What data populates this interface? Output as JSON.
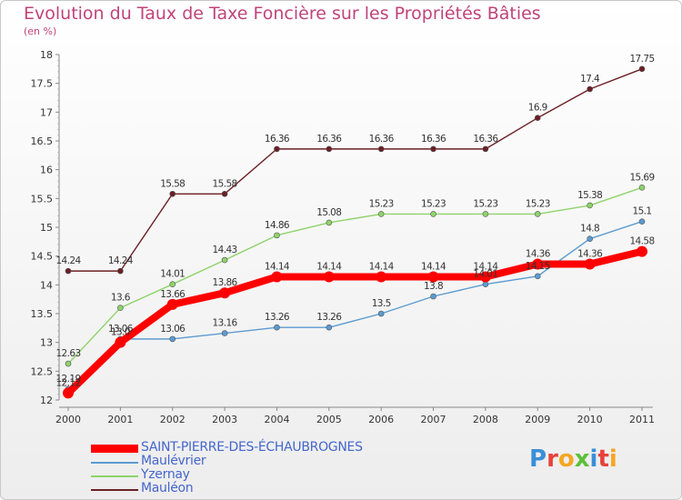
{
  "title": "Evolution du Taux de Taxe Foncière sur les Propriétés Bâties",
  "subtitle": "(en %)",
  "colors": {
    "title": "#c0437a",
    "legend_text": "#4466cc",
    "axis": "#888888"
  },
  "logo": {
    "text": "Proxiti",
    "letters": [
      {
        "ch": "P",
        "color": "#3a8fd8"
      },
      {
        "ch": "r",
        "color": "#e8413a"
      },
      {
        "ch": "o",
        "color": "#f5a623"
      },
      {
        "ch": "x",
        "color": "#5cbf3a"
      },
      {
        "ch": "i",
        "color": "#3a8fd8"
      },
      {
        "ch": "t",
        "color": "#e8413a"
      },
      {
        "ch": "i",
        "color": "#f5a623"
      }
    ]
  },
  "chart_data": {
    "type": "line",
    "x": [
      "2000",
      "2001",
      "2002",
      "2003",
      "2004",
      "2005",
      "2006",
      "2007",
      "2008",
      "2009",
      "2010",
      "2011"
    ],
    "ylim": [
      12,
      18
    ],
    "yticks": [
      "12",
      "12.5",
      "13",
      "13.5",
      "14",
      "14.5",
      "15",
      "15.5",
      "16",
      "16.5",
      "17",
      "17.5",
      "18"
    ],
    "xlabel": "",
    "ylabel": "",
    "grid": false,
    "legend_position": "bottom-left",
    "series": [
      {
        "name": "Mauléon",
        "color": "#6b1f24",
        "values": [
          14.24,
          14.24,
          15.58,
          15.58,
          16.36,
          16.36,
          16.36,
          16.36,
          16.36,
          16.9,
          17.4,
          17.75
        ],
        "labels": [
          "14.24",
          "14.24",
          "15.58",
          "15.58",
          "16.36",
          "16.36",
          "16.36",
          "16.36",
          "16.36",
          "16.9",
          "17.4",
          "17.75"
        ]
      },
      {
        "name": "Yzernay",
        "color": "#8ed36a",
        "values": [
          12.63,
          13.6,
          14.01,
          14.43,
          14.86,
          15.08,
          15.23,
          15.23,
          15.23,
          15.23,
          15.38,
          15.69
        ],
        "labels": [
          "12.63",
          "13.6",
          "14.01",
          "14.43",
          "14.86",
          "15.08",
          "15.23",
          "15.23",
          "15.23",
          "15.23",
          "15.38",
          "15.69"
        ]
      },
      {
        "name": "Maulévrier",
        "color": "#5b9bd0",
        "values": [
          12.19,
          13.06,
          13.06,
          13.16,
          13.26,
          13.26,
          13.5,
          13.8,
          14.01,
          14.15,
          14.8,
          15.1
        ],
        "labels": [
          "12.19",
          "13.06",
          "13.06",
          "13.16",
          "13.26",
          "13.26",
          "13.5",
          "13.8",
          "14.01",
          "14.15",
          "14.8",
          "15.1"
        ]
      },
      {
        "name": "SAINT-PIERRE-DES-ÉCHAUBROGNES",
        "color": "#ff0000",
        "values": [
          12.12,
          13.0,
          13.66,
          13.86,
          14.14,
          14.14,
          14.14,
          14.14,
          14.14,
          14.36,
          14.36,
          14.58
        ],
        "labels": [
          "12.12",
          "13.0",
          "13.66",
          "13.86",
          "14.14",
          "14.14",
          "14.14",
          "14.14",
          "14.14",
          "14.36",
          "14.36",
          "14.58"
        ]
      }
    ],
    "legend": [
      "SAINT-PIERRE-DES-ÉCHAUBROGNES",
      "Maulévrier",
      "Yzernay",
      "Mauléon"
    ]
  }
}
